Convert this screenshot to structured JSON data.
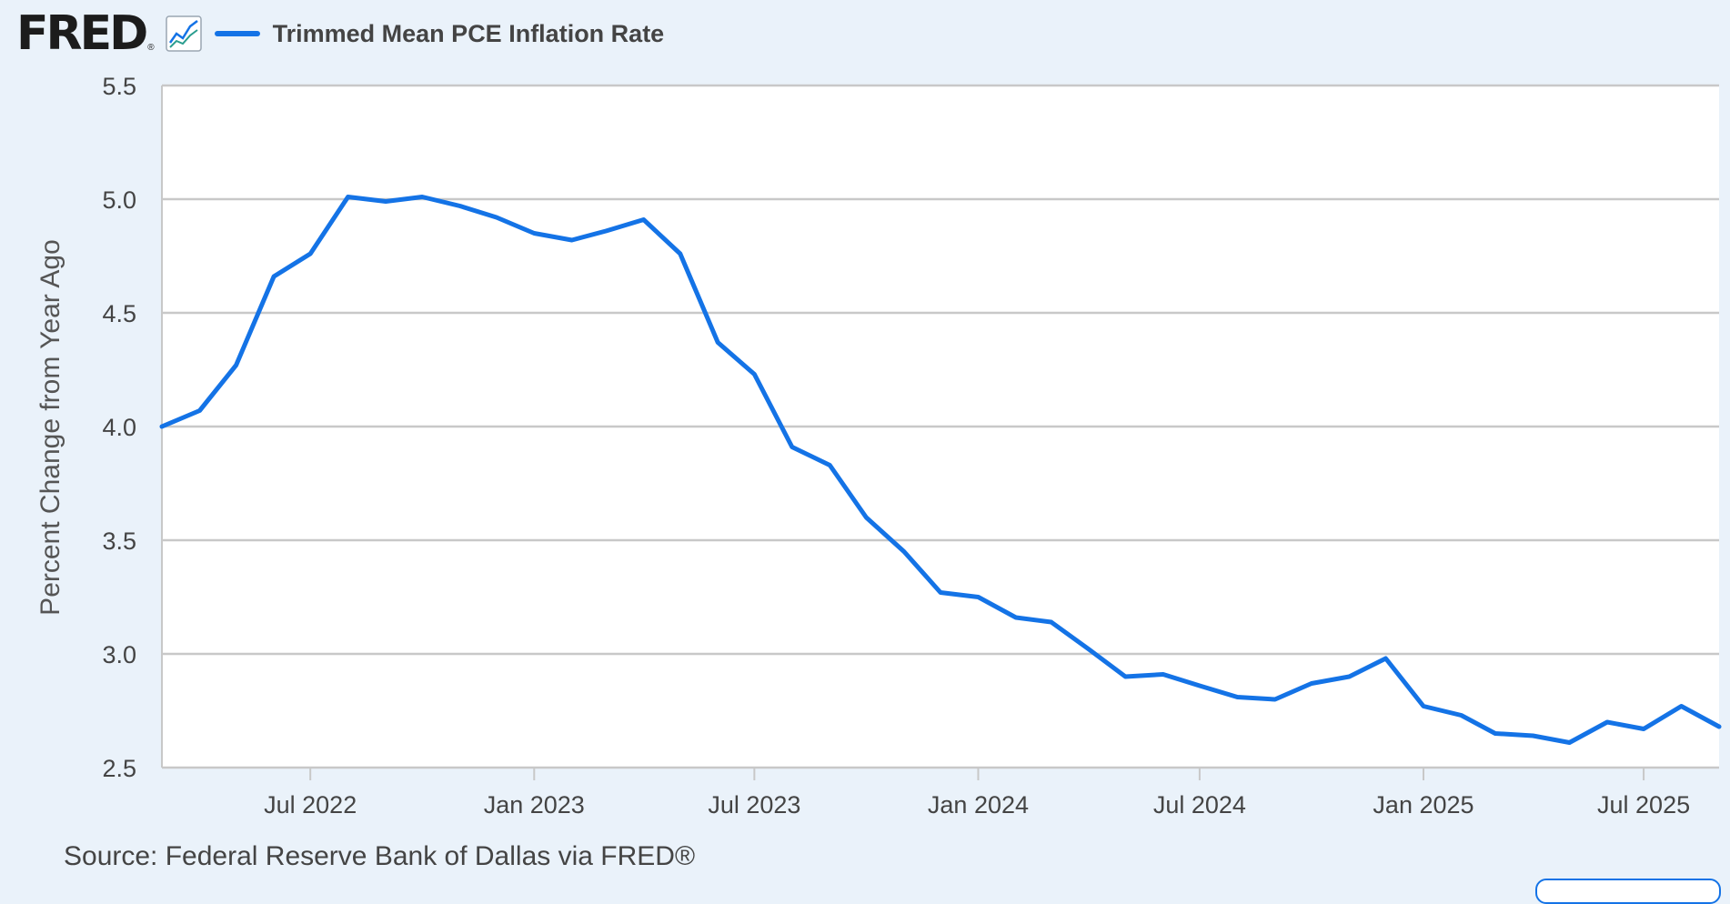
{
  "header": {
    "logo_text": "FRED",
    "logo_mark": "®",
    "graph_icon": "line-chart-icon"
  },
  "footer": {
    "source": "Source: Federal Reserve Bank of Dallas via FRED®"
  },
  "colors": {
    "series": "#1473e6",
    "background": "#eaf2fa",
    "plot_background": "#ffffff",
    "grid": "#c8c8c8",
    "text": "#444444"
  },
  "chart_data": {
    "type": "line",
    "title": "",
    "xlabel": "",
    "ylabel": "Percent Change from Year Ago",
    "ylim": [
      2.5,
      5.5
    ],
    "yticks": [
      "2.5",
      "3.0",
      "3.5",
      "4.0",
      "4.5",
      "5.0",
      "5.5"
    ],
    "grid": true,
    "legend_position": "top-left",
    "x_axis": {
      "type": "date",
      "range": [
        "2022-03-01",
        "2025-09-01"
      ],
      "ticks": [
        {
          "label": "Jul 2022",
          "date": "2022-07-01"
        },
        {
          "label": "Jan 2023",
          "date": "2023-01-01"
        },
        {
          "label": "Jul 2023",
          "date": "2023-07-01"
        },
        {
          "label": "Jan 2024",
          "date": "2024-01-01"
        },
        {
          "label": "Jul 2024",
          "date": "2024-07-01"
        },
        {
          "label": "Jan 2025",
          "date": "2025-01-01"
        },
        {
          "label": "Jul 2025",
          "date": "2025-07-01"
        }
      ]
    },
    "series": [
      {
        "name": "Trimmed Mean PCE Inflation Rate",
        "x": [
          "2022-03-01",
          "2022-04-01",
          "2022-05-01",
          "2022-06-01",
          "2022-07-01",
          "2022-08-01",
          "2022-09-01",
          "2022-10-01",
          "2022-11-01",
          "2022-12-01",
          "2023-01-01",
          "2023-02-01",
          "2023-03-01",
          "2023-04-01",
          "2023-05-01",
          "2023-06-01",
          "2023-07-01",
          "2023-08-01",
          "2023-09-01",
          "2023-10-01",
          "2023-11-01",
          "2023-12-01",
          "2024-01-01",
          "2024-02-01",
          "2024-03-01",
          "2024-04-01",
          "2024-05-01",
          "2024-06-01",
          "2024-07-01",
          "2024-08-01",
          "2024-09-01",
          "2024-10-01",
          "2024-11-01",
          "2024-12-01",
          "2025-01-01",
          "2025-02-01",
          "2025-03-01",
          "2025-04-01",
          "2025-05-01",
          "2025-06-01",
          "2025-07-01",
          "2025-08-01",
          "2025-09-01"
        ],
        "values": [
          4.0,
          4.07,
          4.27,
          4.66,
          4.76,
          5.01,
          4.99,
          5.01,
          4.97,
          4.92,
          4.85,
          4.82,
          4.86,
          4.91,
          4.76,
          4.37,
          4.23,
          3.91,
          3.83,
          3.6,
          3.45,
          3.27,
          3.25,
          3.16,
          3.14,
          3.02,
          2.9,
          2.91,
          2.86,
          2.81,
          2.8,
          2.87,
          2.9,
          2.98,
          2.77,
          2.73,
          2.65,
          2.64,
          2.61,
          2.7,
          2.67,
          2.77,
          2.68
        ]
      }
    ]
  }
}
